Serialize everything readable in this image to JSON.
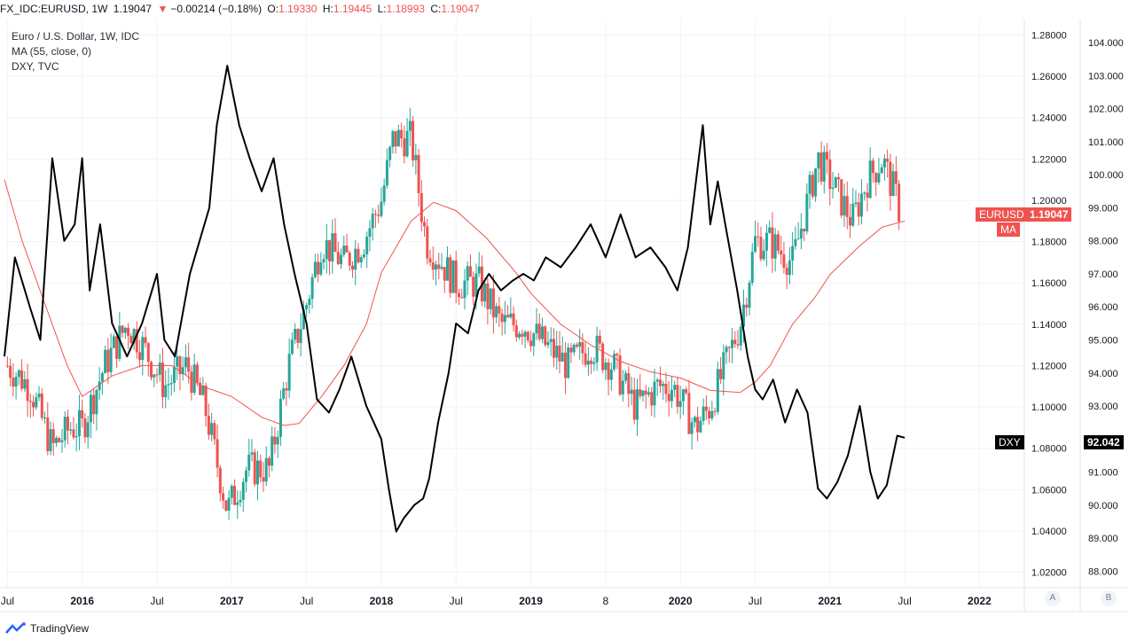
{
  "header": {
    "symbol": "FX_IDC:EURUSD, 1W",
    "last": "1.19047",
    "arrow": "▼",
    "change": "−0.00214 (−0.18%)",
    "open_label": "O:",
    "open": "1.19330",
    "high_label": "H:",
    "high": "1.19445",
    "low_label": "L:",
    "low": "1.18993",
    "close_label": "C:",
    "close": "1.19047"
  },
  "legend": {
    "line1": "Euro / U.S. Dollar, 1W, IDC",
    "line2": "MA (55, close, 0)",
    "line3": "DXY, TVC"
  },
  "tags": {
    "eurusd_label": "EURUSD",
    "eurusd_value": "1.19047",
    "ma_label": "MA",
    "dxy_label": "DXY",
    "dxy_value": "92.042"
  },
  "footer": {
    "brand": "TradingView",
    "btn_a": "A",
    "btn_b": "B"
  },
  "colors": {
    "up": "#26a69a",
    "down": "#ef5350",
    "ma": "#ef5350",
    "dxy": "#000000"
  },
  "chart_data": {
    "type": "line",
    "title": "Euro / U.S. Dollar, 1W, IDC",
    "x_ticks": [
      "Jul",
      "2016",
      "Jul",
      "2017",
      "Jul",
      "2018",
      "Jul",
      "2019",
      "8",
      "2020",
      "Jul",
      "2021",
      "Jul",
      "2022"
    ],
    "x_tick_values": [
      2015.5,
      2016.0,
      2016.5,
      2017.0,
      2017.5,
      2018.0,
      2018.5,
      2019.0,
      2019.5,
      2020.0,
      2020.5,
      2021.0,
      2021.5,
      2022.0
    ],
    "xlim": [
      2015.48,
      2022.3
    ],
    "y_left_ticks": [
      "1.28000",
      "1.26000",
      "1.24000",
      "1.22000",
      "1.20000",
      "1.18000",
      "1.16000",
      "1.14000",
      "1.12000",
      "1.10000",
      "1.08000",
      "1.06000",
      "1.04000",
      "1.02000"
    ],
    "y_left_tick_values": [
      1.28,
      1.26,
      1.24,
      1.22,
      1.2,
      1.18,
      1.16,
      1.14,
      1.12,
      1.1,
      1.08,
      1.06,
      1.04,
      1.02
    ],
    "ylim_left": [
      1.0125,
      1.2875
    ],
    "y_right_ticks": [
      "104.000",
      "103.000",
      "102.000",
      "101.000",
      "100.000",
      "99.000",
      "98.000",
      "97.000",
      "96.000",
      "95.000",
      "94.000",
      "93.000",
      "92.000",
      "91.000",
      "90.000",
      "89.000",
      "88.000"
    ],
    "y_right_tick_values": [
      104,
      103,
      102,
      101,
      100,
      99,
      98,
      97,
      96,
      95,
      94,
      93,
      92,
      91,
      90,
      89,
      88
    ],
    "ylim_right": [
      87.5,
      104.7
    ],
    "series": [
      {
        "name": "EURUSD",
        "axis": "left",
        "style": "candles",
        "x": [
          2015.5,
          2015.65,
          2015.8,
          2015.92,
          2016.0,
          2016.15,
          2016.3,
          2016.4,
          2016.55,
          2016.7,
          2016.82,
          2016.97,
          2017.1,
          2017.25,
          2017.38,
          2017.5,
          2017.6,
          2017.75,
          2017.88,
          2018.0,
          2018.08,
          2018.2,
          2018.3,
          2018.4,
          2018.5,
          2018.65,
          2018.8,
          2018.95,
          2019.1,
          2019.25,
          2019.4,
          2019.55,
          2019.7,
          2019.85,
          2019.95,
          2020.1,
          2020.2,
          2020.3,
          2020.4,
          2020.5,
          2020.6,
          2020.75,
          2020.92,
          2021.0,
          2021.15,
          2021.25,
          2021.35,
          2021.45,
          2021.48
        ],
        "y": [
          1.12,
          1.11,
          1.08,
          1.09,
          1.09,
          1.12,
          1.14,
          1.13,
          1.11,
          1.12,
          1.1,
          1.05,
          1.07,
          1.07,
          1.12,
          1.15,
          1.18,
          1.17,
          1.18,
          1.2,
          1.23,
          1.23,
          1.18,
          1.17,
          1.16,
          1.16,
          1.14,
          1.14,
          1.13,
          1.12,
          1.13,
          1.12,
          1.1,
          1.11,
          1.11,
          1.09,
          1.1,
          1.12,
          1.14,
          1.18,
          1.18,
          1.17,
          1.22,
          1.21,
          1.19,
          1.21,
          1.22,
          1.2,
          1.19
        ]
      },
      {
        "name": "MA",
        "axis": "left",
        "style": "line",
        "x": [
          2015.48,
          2015.6,
          2015.75,
          2015.9,
          2016.0,
          2016.2,
          2016.4,
          2016.6,
          2016.8,
          2017.0,
          2017.2,
          2017.35,
          2017.45,
          2017.6,
          2017.75,
          2017.9,
          2018.0,
          2018.2,
          2018.35,
          2018.5,
          2018.7,
          2018.9,
          2019.0,
          2019.2,
          2019.4,
          2019.6,
          2019.8,
          2020.0,
          2020.2,
          2020.4,
          2020.5,
          2020.6,
          2020.75,
          2020.9,
          2021.0,
          2021.2,
          2021.35,
          2021.5
        ],
        "y": [
          1.21,
          1.18,
          1.15,
          1.12,
          1.105,
          1.115,
          1.12,
          1.12,
          1.11,
          1.105,
          1.095,
          1.091,
          1.092,
          1.105,
          1.12,
          1.14,
          1.165,
          1.19,
          1.199,
          1.195,
          1.182,
          1.165,
          1.155,
          1.14,
          1.13,
          1.122,
          1.117,
          1.114,
          1.108,
          1.107,
          1.112,
          1.12,
          1.14,
          1.153,
          1.164,
          1.178,
          1.187,
          1.19
        ]
      },
      {
        "name": "DXY",
        "axis": "right",
        "style": "line",
        "x": [
          2015.48,
          2015.55,
          2015.65,
          2015.72,
          2015.8,
          2015.88,
          2015.95,
          2016.0,
          2016.05,
          2016.12,
          2016.2,
          2016.3,
          2016.4,
          2016.5,
          2016.55,
          2016.62,
          2016.72,
          2016.85,
          2016.9,
          2016.97,
          2017.05,
          2017.12,
          2017.2,
          2017.28,
          2017.35,
          2017.42,
          2017.5,
          2017.57,
          2017.65,
          2017.72,
          2017.8,
          2017.9,
          2018.0,
          2018.05,
          2018.1,
          2018.15,
          2018.22,
          2018.28,
          2018.32,
          2018.38,
          2018.45,
          2018.5,
          2018.58,
          2018.65,
          2018.72,
          2018.8,
          2018.88,
          2018.95,
          2019.02,
          2019.1,
          2019.2,
          2019.3,
          2019.4,
          2019.5,
          2019.6,
          2019.7,
          2019.8,
          2019.9,
          2019.98,
          2020.05,
          2020.15,
          2020.2,
          2020.25,
          2020.3,
          2020.38,
          2020.45,
          2020.5,
          2020.55,
          2020.62,
          2020.7,
          2020.78,
          2020.85,
          2020.92,
          2020.98,
          2021.05,
          2021.12,
          2021.2,
          2021.27,
          2021.32,
          2021.38,
          2021.45,
          2021.5
        ],
        "y": [
          94.5,
          97.5,
          96,
          95,
          100.5,
          98,
          98.5,
          100.5,
          96.5,
          98.5,
          95.5,
          94.5,
          95.5,
          97,
          95,
          94.5,
          97,
          99,
          101.5,
          103.3,
          101.5,
          100.5,
          99.5,
          100.5,
          98.5,
          97,
          95.5,
          93.2,
          92.8,
          93.5,
          94.5,
          93,
          92,
          90.5,
          89.2,
          89.6,
          90,
          90.2,
          90.8,
          92.5,
          94,
          95.5,
          95.2,
          96.5,
          97,
          96.5,
          96.8,
          97,
          96.8,
          97.5,
          97.2,
          97.8,
          98.5,
          97.5,
          98.8,
          97.5,
          97.8,
          97.2,
          96.5,
          97.8,
          101.5,
          98.5,
          99.8,
          98.5,
          96.5,
          94.5,
          93.5,
          93.2,
          93.8,
          92.5,
          93.5,
          92.8,
          90.5,
          90.2,
          90.7,
          91.5,
          93,
          91,
          90.2,
          90.6,
          92.1,
          92.04
        ]
      }
    ]
  }
}
